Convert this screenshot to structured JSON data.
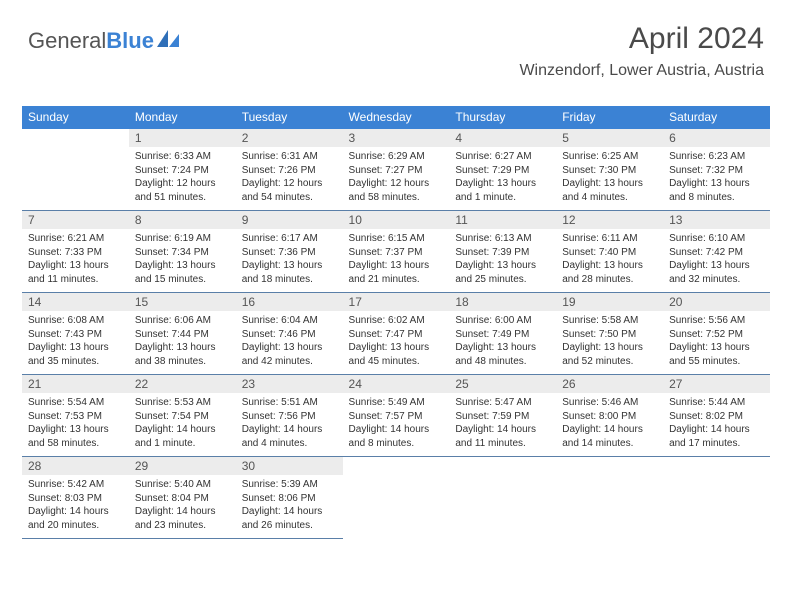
{
  "brand": {
    "part1": "General",
    "part2": "Blue"
  },
  "header": {
    "title": "April 2024",
    "location": "Winzendorf, Lower Austria, Austria"
  },
  "colors": {
    "header_bg": "#3b82d4",
    "header_text": "#ffffff",
    "daynum_bg": "#ececec",
    "daynum_text": "#555555",
    "rule": "#5a7fa8",
    "body_text": "#333333",
    "logo_blue": "#3b82d4",
    "logo_gray": "#555555"
  },
  "days_of_week": [
    "Sunday",
    "Monday",
    "Tuesday",
    "Wednesday",
    "Thursday",
    "Friday",
    "Saturday"
  ],
  "weeks": [
    [
      {
        "n": "",
        "sr": "",
        "ss": "",
        "dl": "",
        "empty": true
      },
      {
        "n": "1",
        "sr": "Sunrise: 6:33 AM",
        "ss": "Sunset: 7:24 PM",
        "dl": "Daylight: 12 hours and 51 minutes."
      },
      {
        "n": "2",
        "sr": "Sunrise: 6:31 AM",
        "ss": "Sunset: 7:26 PM",
        "dl": "Daylight: 12 hours and 54 minutes."
      },
      {
        "n": "3",
        "sr": "Sunrise: 6:29 AM",
        "ss": "Sunset: 7:27 PM",
        "dl": "Daylight: 12 hours and 58 minutes."
      },
      {
        "n": "4",
        "sr": "Sunrise: 6:27 AM",
        "ss": "Sunset: 7:29 PM",
        "dl": "Daylight: 13 hours and 1 minute."
      },
      {
        "n": "5",
        "sr": "Sunrise: 6:25 AM",
        "ss": "Sunset: 7:30 PM",
        "dl": "Daylight: 13 hours and 4 minutes."
      },
      {
        "n": "6",
        "sr": "Sunrise: 6:23 AM",
        "ss": "Sunset: 7:32 PM",
        "dl": "Daylight: 13 hours and 8 minutes."
      }
    ],
    [
      {
        "n": "7",
        "sr": "Sunrise: 6:21 AM",
        "ss": "Sunset: 7:33 PM",
        "dl": "Daylight: 13 hours and 11 minutes."
      },
      {
        "n": "8",
        "sr": "Sunrise: 6:19 AM",
        "ss": "Sunset: 7:34 PM",
        "dl": "Daylight: 13 hours and 15 minutes."
      },
      {
        "n": "9",
        "sr": "Sunrise: 6:17 AM",
        "ss": "Sunset: 7:36 PM",
        "dl": "Daylight: 13 hours and 18 minutes."
      },
      {
        "n": "10",
        "sr": "Sunrise: 6:15 AM",
        "ss": "Sunset: 7:37 PM",
        "dl": "Daylight: 13 hours and 21 minutes."
      },
      {
        "n": "11",
        "sr": "Sunrise: 6:13 AM",
        "ss": "Sunset: 7:39 PM",
        "dl": "Daylight: 13 hours and 25 minutes."
      },
      {
        "n": "12",
        "sr": "Sunrise: 6:11 AM",
        "ss": "Sunset: 7:40 PM",
        "dl": "Daylight: 13 hours and 28 minutes."
      },
      {
        "n": "13",
        "sr": "Sunrise: 6:10 AM",
        "ss": "Sunset: 7:42 PM",
        "dl": "Daylight: 13 hours and 32 minutes."
      }
    ],
    [
      {
        "n": "14",
        "sr": "Sunrise: 6:08 AM",
        "ss": "Sunset: 7:43 PM",
        "dl": "Daylight: 13 hours and 35 minutes."
      },
      {
        "n": "15",
        "sr": "Sunrise: 6:06 AM",
        "ss": "Sunset: 7:44 PM",
        "dl": "Daylight: 13 hours and 38 minutes."
      },
      {
        "n": "16",
        "sr": "Sunrise: 6:04 AM",
        "ss": "Sunset: 7:46 PM",
        "dl": "Daylight: 13 hours and 42 minutes."
      },
      {
        "n": "17",
        "sr": "Sunrise: 6:02 AM",
        "ss": "Sunset: 7:47 PM",
        "dl": "Daylight: 13 hours and 45 minutes."
      },
      {
        "n": "18",
        "sr": "Sunrise: 6:00 AM",
        "ss": "Sunset: 7:49 PM",
        "dl": "Daylight: 13 hours and 48 minutes."
      },
      {
        "n": "19",
        "sr": "Sunrise: 5:58 AM",
        "ss": "Sunset: 7:50 PM",
        "dl": "Daylight: 13 hours and 52 minutes."
      },
      {
        "n": "20",
        "sr": "Sunrise: 5:56 AM",
        "ss": "Sunset: 7:52 PM",
        "dl": "Daylight: 13 hours and 55 minutes."
      }
    ],
    [
      {
        "n": "21",
        "sr": "Sunrise: 5:54 AM",
        "ss": "Sunset: 7:53 PM",
        "dl": "Daylight: 13 hours and 58 minutes."
      },
      {
        "n": "22",
        "sr": "Sunrise: 5:53 AM",
        "ss": "Sunset: 7:54 PM",
        "dl": "Daylight: 14 hours and 1 minute."
      },
      {
        "n": "23",
        "sr": "Sunrise: 5:51 AM",
        "ss": "Sunset: 7:56 PM",
        "dl": "Daylight: 14 hours and 4 minutes."
      },
      {
        "n": "24",
        "sr": "Sunrise: 5:49 AM",
        "ss": "Sunset: 7:57 PM",
        "dl": "Daylight: 14 hours and 8 minutes."
      },
      {
        "n": "25",
        "sr": "Sunrise: 5:47 AM",
        "ss": "Sunset: 7:59 PM",
        "dl": "Daylight: 14 hours and 11 minutes."
      },
      {
        "n": "26",
        "sr": "Sunrise: 5:46 AM",
        "ss": "Sunset: 8:00 PM",
        "dl": "Daylight: 14 hours and 14 minutes."
      },
      {
        "n": "27",
        "sr": "Sunrise: 5:44 AM",
        "ss": "Sunset: 8:02 PM",
        "dl": "Daylight: 14 hours and 17 minutes."
      }
    ],
    [
      {
        "n": "28",
        "sr": "Sunrise: 5:42 AM",
        "ss": "Sunset: 8:03 PM",
        "dl": "Daylight: 14 hours and 20 minutes."
      },
      {
        "n": "29",
        "sr": "Sunrise: 5:40 AM",
        "ss": "Sunset: 8:04 PM",
        "dl": "Daylight: 14 hours and 23 minutes."
      },
      {
        "n": "30",
        "sr": "Sunrise: 5:39 AM",
        "ss": "Sunset: 8:06 PM",
        "dl": "Daylight: 14 hours and 26 minutes."
      },
      {
        "n": "",
        "sr": "",
        "ss": "",
        "dl": "",
        "empty": true
      },
      {
        "n": "",
        "sr": "",
        "ss": "",
        "dl": "",
        "empty": true
      },
      {
        "n": "",
        "sr": "",
        "ss": "",
        "dl": "",
        "empty": true
      },
      {
        "n": "",
        "sr": "",
        "ss": "",
        "dl": "",
        "empty": true
      }
    ]
  ]
}
